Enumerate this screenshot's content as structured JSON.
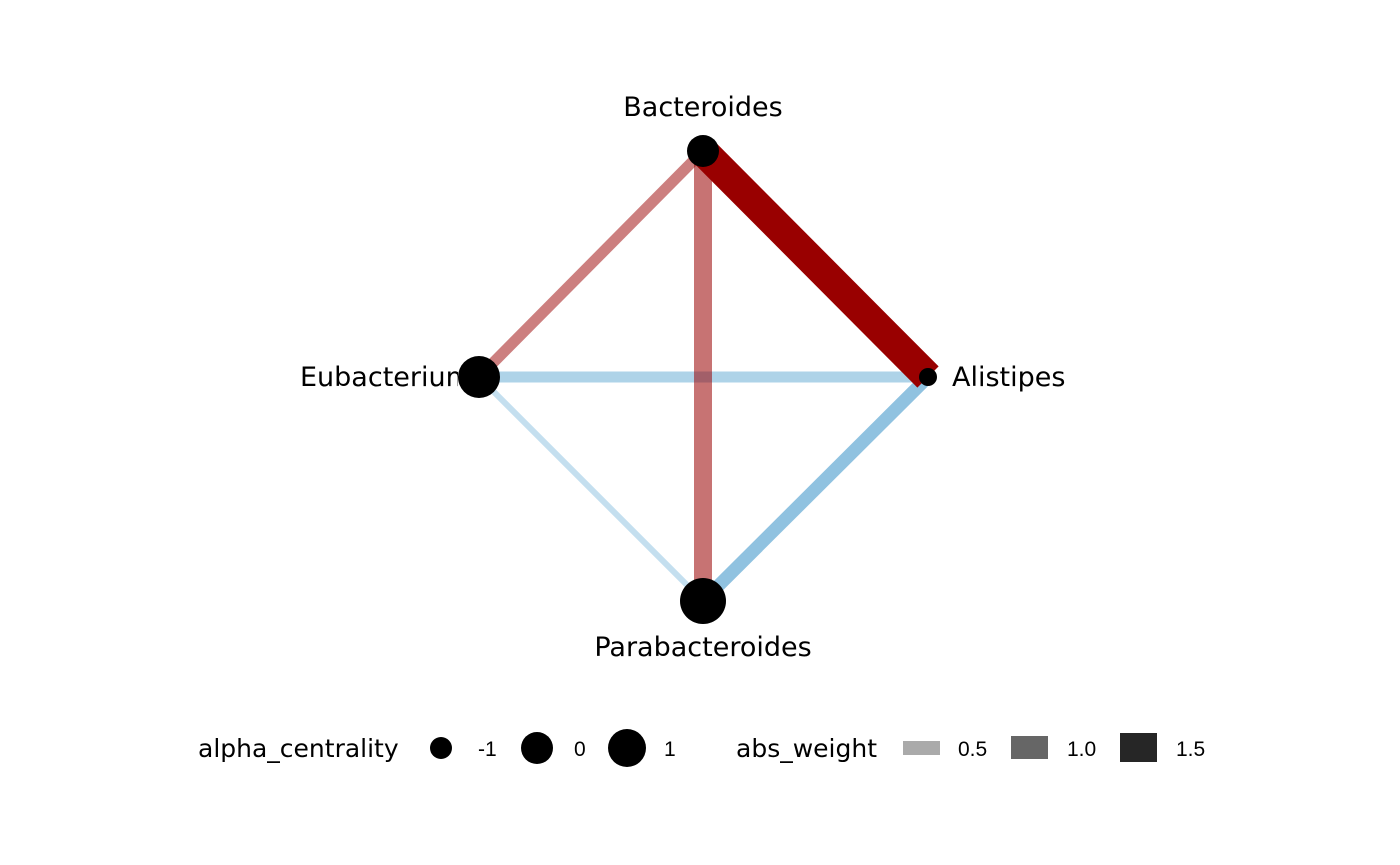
{
  "network": {
    "nodes": [
      {
        "id": "bacteroides",
        "label": "Bacteroides"
      },
      {
        "id": "alistipes",
        "label": "Alistipes"
      },
      {
        "id": "eubacterium",
        "label": "Eubacterium"
      },
      {
        "id": "parabacteroides",
        "label": "Parabacteroides"
      }
    ],
    "edges": [
      {
        "id": "bacteroides-eubacterium",
        "source": "bacteroides",
        "target": "eubacterium",
        "sign": "positive"
      },
      {
        "id": "bacteroides-parabacteroides",
        "source": "bacteroides",
        "target": "parabacteroides",
        "sign": "positive"
      },
      {
        "id": "bacteroides-alistipes",
        "source": "bacteroides",
        "target": "alistipes",
        "sign": "positive"
      },
      {
        "id": "eubacterium-alistipes",
        "source": "eubacterium",
        "target": "alistipes",
        "sign": "negative"
      },
      {
        "id": "eubacterium-parabacteroides",
        "source": "eubacterium",
        "target": "parabacteroides",
        "sign": "negative"
      },
      {
        "id": "alistipes-parabacteroides",
        "source": "alistipes",
        "target": "parabacteroides",
        "sign": "negative"
      }
    ]
  },
  "colors": {
    "positive": "#990000",
    "negative": "#6baed6",
    "node": "#000000"
  },
  "legend": {
    "size_title": "alpha_centrality",
    "size_items": [
      {
        "label": "-1"
      },
      {
        "label": "0"
      },
      {
        "label": "1"
      }
    ],
    "width_title": "abs_weight",
    "width_items": [
      {
        "label": "0.5",
        "color": "#aaaaaa"
      },
      {
        "label": "1.0",
        "color": "#666666"
      },
      {
        "label": "1.5",
        "color": "#262626"
      }
    ]
  }
}
